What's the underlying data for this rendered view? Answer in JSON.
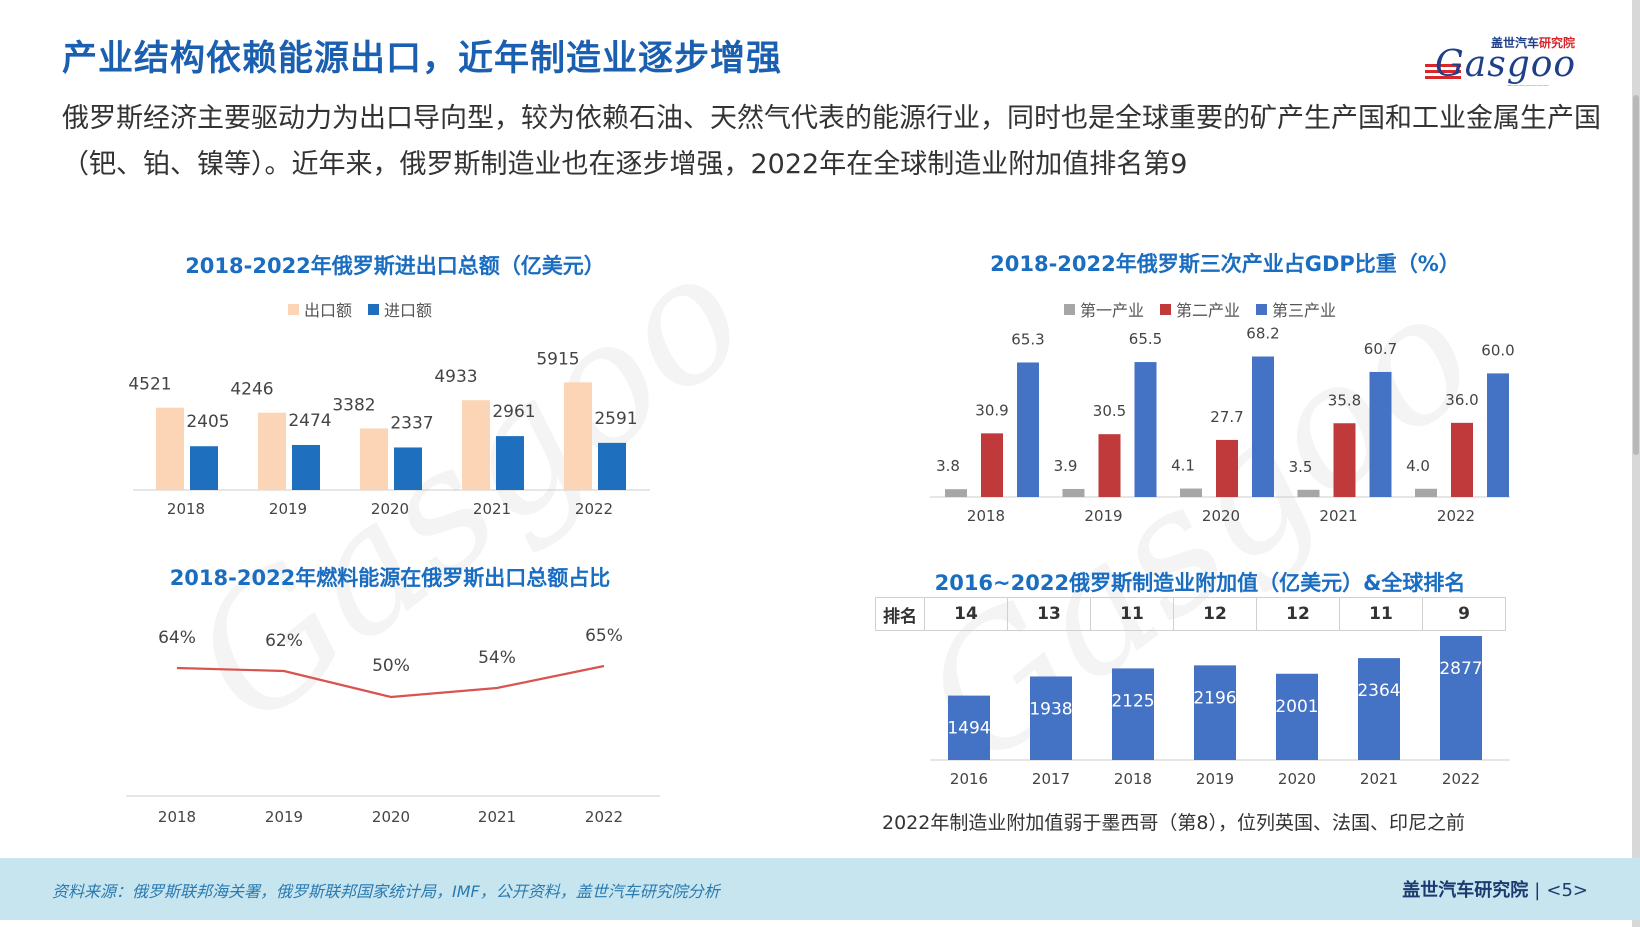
{
  "title": "产业结构依赖能源出口，近年制造业逐步增强",
  "logo": {
    "top": "盖世汽车",
    "top_accent": "研究院",
    "brand": "Gasgoo"
  },
  "intro": "俄罗斯经济主要驱动力为出口导向型，较为依赖石油、天然气代表的能源行业，同时也是全球重要的矿产生产国和工业金属生产国（钯、铂、镍等）。近年来，俄罗斯制造业也在逐步增强，2022年在全球制造业附加值排名第9",
  "chart_data": [
    {
      "id": "trade",
      "type": "bar",
      "title": "2018-2022年俄罗斯进出口总额（亿美元）",
      "categories": [
        "2018",
        "2019",
        "2020",
        "2021",
        "2022"
      ],
      "series": [
        {
          "name": "出口额",
          "color": "#fbd5b5",
          "values": [
            4521,
            4246,
            3382,
            4933,
            5915
          ]
        },
        {
          "name": "进口额",
          "color": "#1f6fbf",
          "values": [
            2405,
            2474,
            2337,
            2961,
            2591
          ]
        }
      ],
      "ylim": [
        0,
        7000
      ]
    },
    {
      "id": "fuel",
      "type": "line",
      "title": "2018-2022年燃料能源在俄罗斯出口总额占比",
      "categories": [
        "2018",
        "2019",
        "2020",
        "2021",
        "2022"
      ],
      "series": [
        {
          "color": "#d9534f",
          "values": [
            64,
            62,
            50,
            54,
            65
          ],
          "labels": [
            "64%",
            "62%",
            "50%",
            "54%",
            "65%"
          ]
        }
      ],
      "ylim": [
        0,
        100
      ]
    },
    {
      "id": "gdp",
      "type": "bar",
      "title": "2018-2022年俄罗斯三次产业占GDP比重（%）",
      "categories": [
        "2018",
        "2019",
        "2020",
        "2021",
        "2022"
      ],
      "series": [
        {
          "name": "第一产业",
          "color": "#a6a6a6",
          "values": [
            3.8,
            3.9,
            4.1,
            3.5,
            4.0
          ]
        },
        {
          "name": "第二产业",
          "color": "#c0393b",
          "values": [
            30.9,
            30.5,
            27.7,
            35.8,
            36.0
          ]
        },
        {
          "name": "第三产业",
          "color": "#4472c4",
          "values": [
            65.3,
            65.5,
            68.2,
            60.7,
            60.0
          ]
        }
      ],
      "ylim": [
        0,
        70
      ]
    },
    {
      "id": "mfg",
      "type": "bar",
      "title": "2016~2022俄罗斯制造业附加值（亿美元）&全球排名",
      "categories": [
        "2016",
        "2017",
        "2018",
        "2019",
        "2020",
        "2021",
        "2022"
      ],
      "series": [
        {
          "color": "#4472c4",
          "values": [
            1494,
            1938,
            2125,
            2196,
            2001,
            2364,
            2877
          ]
        }
      ],
      "rank": {
        "label": "排名",
        "values": [
          "14",
          "13",
          "11",
          "12",
          "12",
          "11",
          "9"
        ]
      },
      "ylim": [
        0,
        2877
      ]
    }
  ],
  "mfg_note": "2022年制造业附加值弱于墨西哥（第8），位列英国、法国、印尼之前",
  "footer": {
    "source": "资料来源：俄罗斯联邦海关署，俄罗斯联邦国家统计局，IMF，公开资料，盖世汽车研究院分析",
    "brand": "盖世汽车研究院",
    "separator": "|",
    "page": "<5>"
  }
}
